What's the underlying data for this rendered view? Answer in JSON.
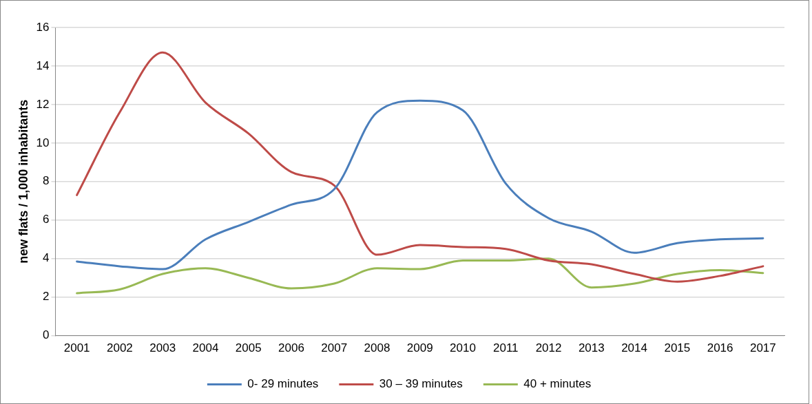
{
  "chart_data": {
    "type": "line",
    "ylabel": "new flats / 1,000 inhabitants",
    "categories": [
      "2001",
      "2002",
      "2003",
      "2004",
      "2005",
      "2006",
      "2007",
      "2008",
      "2009",
      "2010",
      "2011",
      "2012",
      "2013",
      "2014",
      "2015",
      "2016",
      "2017"
    ],
    "series": [
      {
        "name": "0- 29 minutes",
        "color": "#4a7ebb",
        "values": [
          3.85,
          3.6,
          3.45,
          5.0,
          5.9,
          6.8,
          7.6,
          11.6,
          12.2,
          11.7,
          7.9,
          6.1,
          5.4,
          4.3,
          4.8,
          5.0,
          5.05
        ]
      },
      {
        "name": "30 – 39 minutes",
        "color": "#be4b48",
        "values": [
          7.3,
          11.6,
          14.7,
          12.1,
          10.5,
          8.5,
          7.8,
          4.2,
          4.7,
          4.6,
          4.5,
          3.9,
          3.7,
          3.2,
          2.8,
          3.1,
          3.6
        ]
      },
      {
        "name": "40 + minutes",
        "color": "#98b954",
        "values": [
          2.2,
          2.4,
          3.2,
          3.5,
          3.0,
          2.45,
          2.7,
          3.5,
          3.45,
          3.9,
          3.9,
          4.0,
          2.5,
          2.7,
          3.2,
          3.4,
          3.25
        ]
      }
    ],
    "ylim": [
      0,
      16
    ],
    "yticks": [
      0,
      2,
      4,
      6,
      8,
      10,
      12,
      14,
      16
    ],
    "grid": "y",
    "legend": "bottom",
    "marker": "none",
    "line_style": "solid"
  }
}
